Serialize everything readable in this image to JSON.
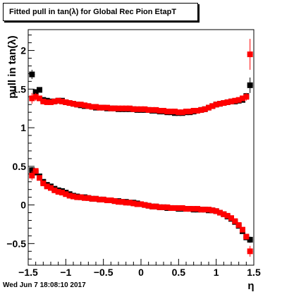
{
  "title": "Fitted pull in tan(λ) for Global Rec Pion EtapT",
  "date_stamp": "Wed Jun  7 18:08:10 2017",
  "chart_data": {
    "type": "scatter",
    "title": "Fitted pull in tan(λ) for Global Rec Pion EtapT",
    "xlabel": "η",
    "ylabel": "pull in tan(λ)",
    "xlim": [
      -1.5,
      1.5
    ],
    "ylim": [
      -0.78,
      2.27
    ],
    "xticks": [
      -1.5,
      -1,
      -0.5,
      0,
      0.5,
      1,
      1.5
    ],
    "xtick_labels": [
      "−1.5",
      "−1",
      "−0.5",
      "0",
      "0.5",
      "1",
      "1.5"
    ],
    "yticks": [
      -0.5,
      0,
      0.5,
      1,
      1.5,
      2
    ],
    "ytick_labels": [
      "−0.5",
      "0",
      "0.5",
      "1",
      "1.5",
      "2"
    ],
    "colors": {
      "black": "#000000",
      "red": "#ff0000"
    },
    "series": [
      {
        "marker": "square",
        "color": "#000000",
        "x": [
          -1.45,
          -1.4,
          -1.35,
          -1.3,
          -1.25,
          -1.2,
          -1.15,
          -1.1,
          -1.05,
          -1.0,
          -0.95,
          -0.9,
          -0.85,
          -0.8,
          -0.75,
          -0.7,
          -0.65,
          -0.6,
          -0.55,
          -0.5,
          -0.45,
          -0.4,
          -0.35,
          -0.3,
          -0.25,
          -0.2,
          -0.15,
          -0.1,
          -0.05,
          0.0,
          0.05,
          0.1,
          0.15,
          0.2,
          0.25,
          0.3,
          0.35,
          0.4,
          0.45,
          0.5,
          0.55,
          0.6,
          0.65,
          0.7,
          0.75,
          0.8,
          0.85,
          0.9,
          0.95,
          1.0,
          1.05,
          1.1,
          1.15,
          1.2,
          1.25,
          1.3,
          1.35,
          1.4,
          1.45
        ],
        "y": [
          1.69,
          1.46,
          1.49,
          1.36,
          1.35,
          1.34,
          1.34,
          1.35,
          1.35,
          1.33,
          1.32,
          1.31,
          1.3,
          1.29,
          1.28,
          1.28,
          1.27,
          1.26,
          1.26,
          1.26,
          1.25,
          1.25,
          1.25,
          1.24,
          1.24,
          1.24,
          1.24,
          1.24,
          1.23,
          1.23,
          1.23,
          1.23,
          1.22,
          1.22,
          1.21,
          1.21,
          1.2,
          1.2,
          1.19,
          1.19,
          1.19,
          1.2,
          1.2,
          1.21,
          1.22,
          1.23,
          1.24,
          1.26,
          1.28,
          1.3,
          1.31,
          1.32,
          1.33,
          1.34,
          1.34,
          1.35,
          1.36,
          1.41,
          1.55
        ],
        "errors": [
          0.06,
          0.04,
          0.02,
          0.01,
          0.01,
          0.01,
          0.01,
          0.01,
          0.01,
          0.01,
          0.01,
          0.01,
          0.01,
          0.01,
          0.01,
          0.01,
          0.01,
          0.01,
          0.01,
          0.01,
          0.01,
          0.01,
          0.01,
          0.01,
          0.01,
          0.01,
          0.01,
          0.01,
          0.01,
          0.01,
          0.01,
          0.01,
          0.01,
          0.01,
          0.01,
          0.01,
          0.01,
          0.01,
          0.01,
          0.01,
          0.01,
          0.01,
          0.01,
          0.01,
          0.01,
          0.01,
          0.01,
          0.01,
          0.01,
          0.01,
          0.01,
          0.01,
          0.01,
          0.01,
          0.01,
          0.01,
          0.01,
          0.03,
          0.1
        ]
      },
      {
        "marker": "square",
        "color": "#000000",
        "x": [
          -1.45,
          -1.4,
          -1.35,
          -1.3,
          -1.25,
          -1.2,
          -1.15,
          -1.1,
          -1.05,
          -1.0,
          -0.95,
          -0.9,
          -0.85,
          -0.8,
          -0.75,
          -0.7,
          -0.65,
          -0.6,
          -0.55,
          -0.5,
          -0.45,
          -0.4,
          -0.35,
          -0.3,
          -0.25,
          -0.2,
          -0.15,
          -0.1,
          -0.05,
          0.0,
          0.05,
          0.1,
          0.15,
          0.2,
          0.25,
          0.3,
          0.35,
          0.4,
          0.45,
          0.5,
          0.55,
          0.6,
          0.65,
          0.7,
          0.75,
          0.8,
          0.85,
          0.9,
          0.95,
          1.0,
          1.05,
          1.1,
          1.15,
          1.2,
          1.25,
          1.3,
          1.35,
          1.4,
          1.45
        ],
        "y": [
          0.45,
          0.42,
          0.37,
          0.3,
          0.26,
          0.24,
          0.21,
          0.19,
          0.18,
          0.16,
          0.14,
          0.12,
          0.11,
          0.1,
          0.1,
          0.09,
          0.08,
          0.08,
          0.07,
          0.07,
          0.06,
          0.06,
          0.05,
          0.05,
          0.04,
          0.04,
          0.03,
          0.03,
          0.02,
          0.01,
          0.0,
          -0.01,
          -0.02,
          -0.02,
          -0.03,
          -0.03,
          -0.04,
          -0.04,
          -0.04,
          -0.05,
          -0.05,
          -0.05,
          -0.05,
          -0.06,
          -0.06,
          -0.06,
          -0.06,
          -0.07,
          -0.07,
          -0.08,
          -0.1,
          -0.12,
          -0.15,
          -0.18,
          -0.22,
          -0.27,
          -0.34,
          -0.42,
          -0.45
        ],
        "errors": [
          0.04,
          0.02,
          0.01,
          0.01,
          0.01,
          0.01,
          0.01,
          0.01,
          0.01,
          0.01,
          0.01,
          0.01,
          0.01,
          0.01,
          0.01,
          0.01,
          0.01,
          0.01,
          0.01,
          0.01,
          0.01,
          0.01,
          0.01,
          0.01,
          0.01,
          0.01,
          0.01,
          0.01,
          0.01,
          0.01,
          0.01,
          0.01,
          0.01,
          0.01,
          0.01,
          0.01,
          0.01,
          0.01,
          0.01,
          0.01,
          0.01,
          0.01,
          0.01,
          0.01,
          0.01,
          0.01,
          0.01,
          0.01,
          0.01,
          0.01,
          0.01,
          0.01,
          0.01,
          0.01,
          0.01,
          0.01,
          0.01,
          0.02,
          0.04
        ]
      },
      {
        "marker": "square",
        "color": "#ff0000",
        "x": [
          -1.45,
          -1.4,
          -1.35,
          -1.3,
          -1.25,
          -1.2,
          -1.15,
          -1.1,
          -1.05,
          -1.0,
          -0.95,
          -0.9,
          -0.85,
          -0.8,
          -0.75,
          -0.7,
          -0.65,
          -0.6,
          -0.55,
          -0.5,
          -0.45,
          -0.4,
          -0.35,
          -0.3,
          -0.25,
          -0.2,
          -0.15,
          -0.1,
          -0.05,
          0.0,
          0.05,
          0.1,
          0.15,
          0.2,
          0.25,
          0.3,
          0.35,
          0.4,
          0.45,
          0.5,
          0.55,
          0.6,
          0.65,
          0.7,
          0.75,
          0.8,
          0.85,
          0.9,
          0.95,
          1.0,
          1.05,
          1.1,
          1.15,
          1.2,
          1.25,
          1.3,
          1.35,
          1.4,
          1.45
        ],
        "y": [
          1.38,
          1.4,
          1.38,
          1.34,
          1.33,
          1.33,
          1.34,
          1.35,
          1.34,
          1.33,
          1.32,
          1.31,
          1.3,
          1.3,
          1.29,
          1.28,
          1.27,
          1.27,
          1.26,
          1.26,
          1.26,
          1.25,
          1.25,
          1.25,
          1.25,
          1.25,
          1.25,
          1.24,
          1.24,
          1.24,
          1.24,
          1.23,
          1.23,
          1.23,
          1.22,
          1.22,
          1.21,
          1.21,
          1.21,
          1.2,
          1.2,
          1.21,
          1.21,
          1.22,
          1.22,
          1.23,
          1.24,
          1.26,
          1.28,
          1.3,
          1.31,
          1.32,
          1.33,
          1.34,
          1.35,
          1.36,
          1.38,
          1.4,
          1.95
        ],
        "errors": [
          0.07,
          0.05,
          0.02,
          0.01,
          0.01,
          0.01,
          0.01,
          0.01,
          0.01,
          0.01,
          0.01,
          0.01,
          0.01,
          0.01,
          0.01,
          0.01,
          0.01,
          0.01,
          0.01,
          0.01,
          0.01,
          0.01,
          0.01,
          0.01,
          0.01,
          0.01,
          0.01,
          0.01,
          0.01,
          0.01,
          0.01,
          0.01,
          0.01,
          0.01,
          0.01,
          0.01,
          0.01,
          0.01,
          0.01,
          0.01,
          0.01,
          0.01,
          0.01,
          0.01,
          0.01,
          0.01,
          0.01,
          0.01,
          0.01,
          0.01,
          0.01,
          0.01,
          0.01,
          0.01,
          0.01,
          0.01,
          0.01,
          0.05,
          0.2
        ]
      },
      {
        "marker": "square",
        "color": "#ff0000",
        "x": [
          -1.45,
          -1.4,
          -1.35,
          -1.3,
          -1.25,
          -1.2,
          -1.15,
          -1.1,
          -1.05,
          -1.0,
          -0.95,
          -0.9,
          -0.85,
          -0.8,
          -0.75,
          -0.7,
          -0.65,
          -0.6,
          -0.55,
          -0.5,
          -0.45,
          -0.4,
          -0.35,
          -0.3,
          -0.25,
          -0.2,
          -0.15,
          -0.1,
          -0.05,
          0.0,
          0.05,
          0.1,
          0.15,
          0.2,
          0.25,
          0.3,
          0.35,
          0.4,
          0.45,
          0.5,
          0.55,
          0.6,
          0.65,
          0.7,
          0.75,
          0.8,
          0.85,
          0.9,
          0.95,
          1.0,
          1.05,
          1.1,
          1.15,
          1.2,
          1.25,
          1.3,
          1.35,
          1.4,
          1.45
        ],
        "y": [
          0.38,
          0.44,
          0.35,
          0.28,
          0.24,
          0.22,
          0.19,
          0.17,
          0.16,
          0.14,
          0.12,
          0.11,
          0.1,
          0.1,
          0.09,
          0.09,
          0.08,
          0.08,
          0.07,
          0.07,
          0.06,
          0.06,
          0.05,
          0.04,
          0.04,
          0.03,
          0.03,
          0.02,
          0.01,
          0.01,
          0.0,
          -0.01,
          -0.02,
          -0.02,
          -0.03,
          -0.03,
          -0.03,
          -0.04,
          -0.04,
          -0.04,
          -0.04,
          -0.05,
          -0.05,
          -0.05,
          -0.05,
          -0.06,
          -0.06,
          -0.06,
          -0.07,
          -0.08,
          -0.1,
          -0.12,
          -0.14,
          -0.17,
          -0.21,
          -0.26,
          -0.32,
          -0.41,
          -0.6
        ],
        "errors": [
          0.06,
          0.03,
          0.01,
          0.01,
          0.01,
          0.01,
          0.01,
          0.01,
          0.01,
          0.01,
          0.01,
          0.01,
          0.01,
          0.01,
          0.01,
          0.01,
          0.01,
          0.01,
          0.01,
          0.01,
          0.01,
          0.01,
          0.01,
          0.01,
          0.01,
          0.01,
          0.01,
          0.01,
          0.01,
          0.01,
          0.01,
          0.01,
          0.01,
          0.01,
          0.01,
          0.01,
          0.01,
          0.01,
          0.01,
          0.01,
          0.01,
          0.01,
          0.01,
          0.01,
          0.01,
          0.01,
          0.01,
          0.01,
          0.01,
          0.01,
          0.01,
          0.01,
          0.01,
          0.01,
          0.01,
          0.01,
          0.01,
          0.03,
          0.07
        ]
      }
    ]
  }
}
